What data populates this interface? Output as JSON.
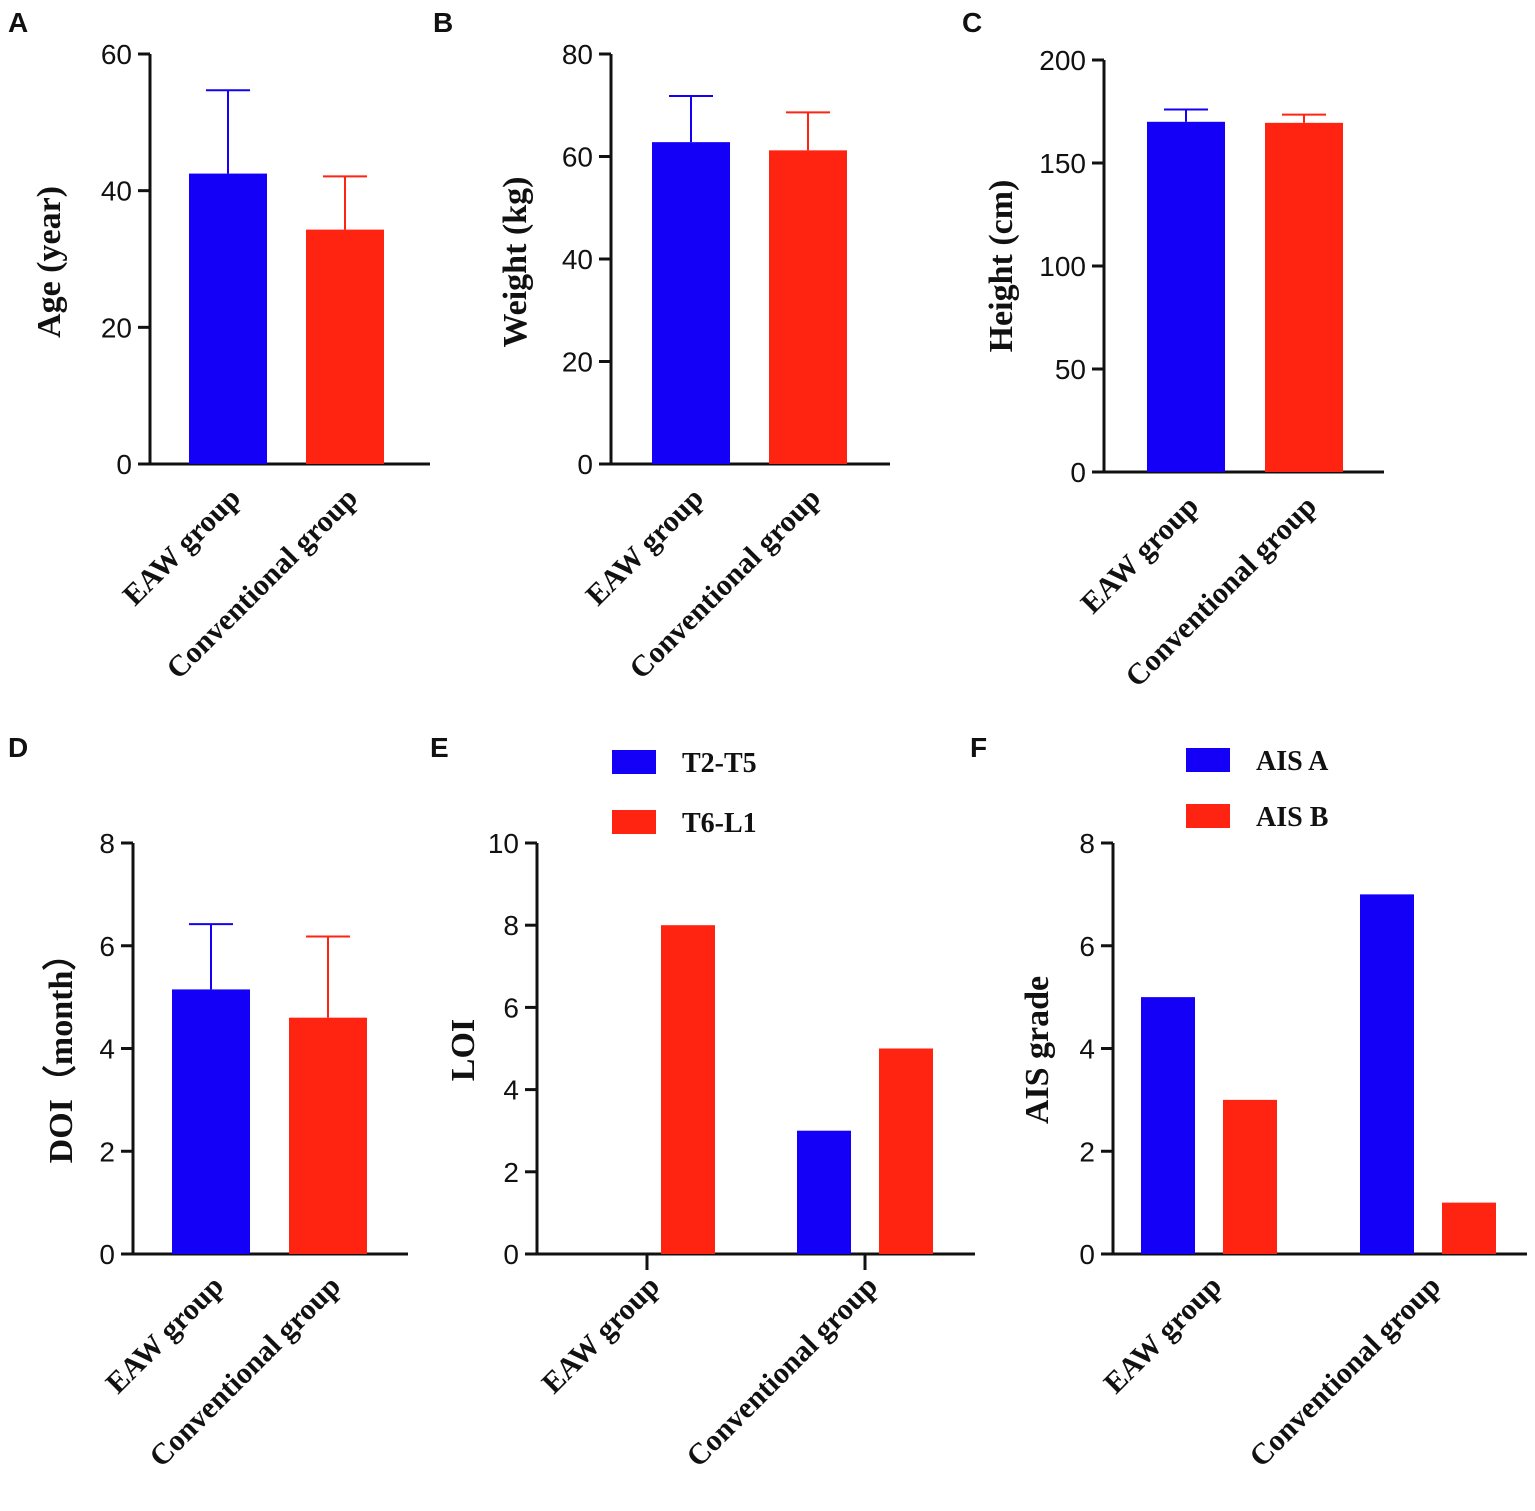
{
  "figure_title": "",
  "colors": {
    "blue": "#1500F7",
    "red": "#FF2312"
  },
  "chart_data": [
    {
      "id": "A",
      "type": "bar",
      "panel_letter": "A",
      "ylabel": "Age (year)",
      "categories": [
        "EAW group",
        "Conventional group"
      ],
      "values": [
        42.5,
        34.3
      ],
      "errors": [
        12.2,
        7.8
      ],
      "bar_colors": [
        "blue",
        "red"
      ],
      "ylim": [
        0,
        60
      ],
      "yticks": [
        0,
        20,
        40,
        60
      ]
    },
    {
      "id": "B",
      "type": "bar",
      "panel_letter": "B",
      "ylabel": "Weight (kg)",
      "categories": [
        "EAW group",
        "Conventional group"
      ],
      "values": [
        62.8,
        61.2
      ],
      "errors": [
        9.0,
        7.4
      ],
      "bar_colors": [
        "blue",
        "red"
      ],
      "ylim": [
        0,
        80
      ],
      "yticks": [
        0,
        20,
        40,
        60,
        80
      ]
    },
    {
      "id": "C",
      "type": "bar",
      "panel_letter": "C",
      "ylabel": "Height (cm)",
      "categories": [
        "EAW group",
        "Conventional group"
      ],
      "values": [
        170,
        169.5
      ],
      "errors": [
        6.0,
        4.0
      ],
      "bar_colors": [
        "blue",
        "red"
      ],
      "ylim": [
        0,
        200
      ],
      "yticks": [
        0,
        50,
        100,
        150,
        200
      ]
    },
    {
      "id": "D",
      "type": "bar",
      "panel_letter": "D",
      "ylabel": "DOI（month）",
      "categories": [
        "EAW group",
        "Conventional group"
      ],
      "values": [
        5.15,
        4.6
      ],
      "errors": [
        1.27,
        1.58
      ],
      "bar_colors": [
        "blue",
        "red"
      ],
      "ylim": [
        0,
        8
      ],
      "yticks": [
        0,
        2,
        4,
        6,
        8
      ]
    },
    {
      "id": "E",
      "type": "bar",
      "panel_letter": "E",
      "ylabel": "LOI",
      "categories": [
        "EAW group",
        "Conventional group"
      ],
      "series": [
        {
          "name": "T2-T5",
          "color": "blue",
          "values": [
            0,
            3
          ]
        },
        {
          "name": "T6-L1",
          "color": "red",
          "values": [
            8,
            5
          ]
        }
      ],
      "ylim": [
        0,
        10
      ],
      "yticks": [
        0,
        2,
        4,
        6,
        8,
        10
      ],
      "legend_position": "top"
    },
    {
      "id": "F",
      "type": "bar",
      "panel_letter": "F",
      "ylabel": "AIS grade",
      "categories": [
        "EAW group",
        "Conventional group"
      ],
      "series": [
        {
          "name": "AIS A",
          "color": "blue",
          "values": [
            5,
            7
          ]
        },
        {
          "name": "AIS B",
          "color": "red",
          "values": [
            3,
            1
          ]
        }
      ],
      "ylim": [
        0,
        8
      ],
      "yticks": [
        0,
        2,
        4,
        6,
        8
      ],
      "legend_position": "top"
    }
  ]
}
